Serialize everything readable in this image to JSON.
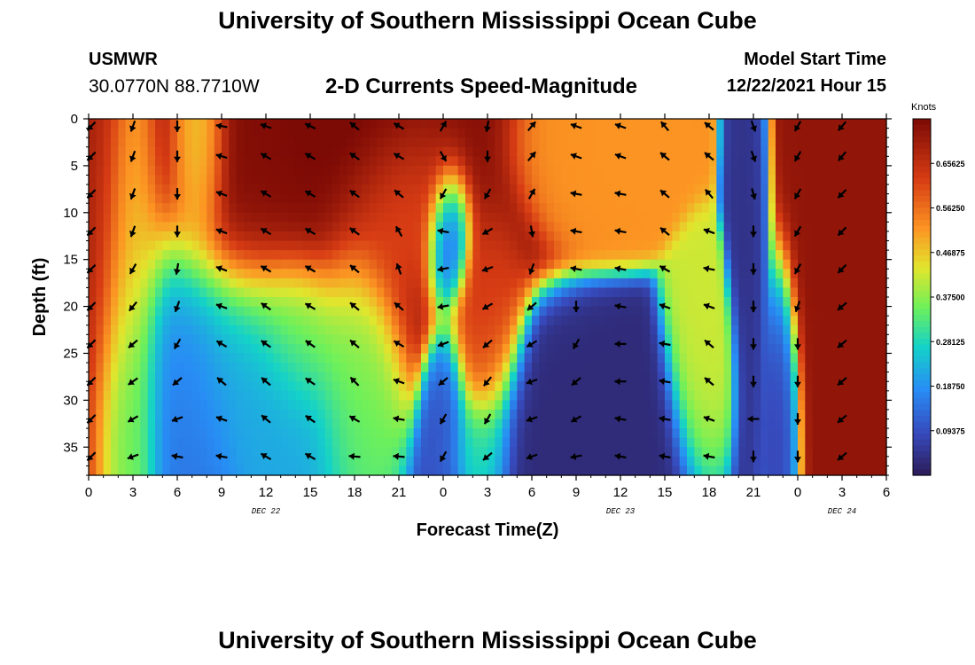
{
  "header": {
    "title": "University of Southern Mississippi Ocean Cube",
    "station": "USMWR",
    "coordinates": "30.0770N  88.7710W",
    "subtitle": "2-D Currents Speed-Magnitude",
    "model_start_label": "Model Start Time",
    "model_start_value": "12/22/2021 Hour 15"
  },
  "footer": {
    "title": "University of Southern Mississippi Ocean Cube"
  },
  "chart_data": {
    "type": "heatmap",
    "title": "2-D Currents Speed-Magnitude",
    "xlabel": "Forecast Time(Z)",
    "ylabel": "Depth (ft)",
    "x_range_hours": [
      0,
      54
    ],
    "y_range_ft": [
      0,
      38
    ],
    "y_ticks": [
      0,
      5,
      10,
      15,
      20,
      25,
      30,
      35
    ],
    "x_tick_labels": [
      "0",
      "3",
      "6",
      "9",
      "12",
      "15",
      "18",
      "21",
      "0",
      "3",
      "6",
      "9",
      "12",
      "15",
      "18",
      "21",
      "0",
      "3",
      "6"
    ],
    "date_labels": [
      {
        "label": "DEC 22",
        "hour": 12
      },
      {
        "label": "DEC 23",
        "hour": 36
      },
      {
        "label": "DEC 24",
        "hour": 51
      }
    ],
    "colorbar": {
      "title": "Knots",
      "ticks": [
        "0.65625",
        "0.56250",
        "0.46875",
        "0.37500",
        "0.28125",
        "0.18750",
        "0.09375"
      ],
      "range": [
        0,
        0.75
      ]
    },
    "speed_field_knots": [
      {
        "hour": 0.5,
        "depth": 10,
        "value": 0.7,
        "sh": 1.1,
        "sd": 16
      },
      {
        "hour": 2.5,
        "depth": 20,
        "value": 0.45,
        "sh": 1.2,
        "sd": 14
      },
      {
        "hour": 2.5,
        "depth": 32,
        "value": 0.3,
        "sh": 1.0,
        "sd": 7
      },
      {
        "hour": 7.5,
        "depth": 3,
        "value": 0.4,
        "sh": 0.9,
        "sd": 6
      },
      {
        "hour": 6.5,
        "depth": 30,
        "value": 0.15,
        "sh": 1.6,
        "sd": 9
      },
      {
        "hour": 15.0,
        "depth": 6,
        "value": 0.74,
        "sh": 5.5,
        "sd": 9
      },
      {
        "hour": 18.0,
        "depth": 2,
        "value": 0.78,
        "sh": 2.5,
        "sd": 5
      },
      {
        "hour": 20.5,
        "depth": 9,
        "value": 0.55,
        "sh": 2.0,
        "sd": 5
      },
      {
        "hour": 14.5,
        "depth": 22,
        "value": 0.36,
        "sh": 1.6,
        "sd": 4
      },
      {
        "hour": 18.0,
        "depth": 23,
        "value": 0.36,
        "sh": 1.3,
        "sd": 6
      },
      {
        "hour": 11.0,
        "depth": 26,
        "value": 0.21,
        "sh": 3.5,
        "sd": 6
      },
      {
        "hour": 24.3,
        "depth": 13,
        "value": 0.04,
        "sh": 0.7,
        "sd": 3.5
      },
      {
        "hour": 24.3,
        "depth": 33,
        "value": 0.1,
        "sh": 0.7,
        "sd": 5
      },
      {
        "hour": 26.8,
        "depth": 24,
        "value": 0.62,
        "sh": 1.1,
        "sd": 6
      },
      {
        "hour": 26.3,
        "depth": 35,
        "value": 0.28,
        "sh": 1.0,
        "sd": 3
      },
      {
        "hour": 34.5,
        "depth": 3,
        "value": 0.52,
        "sh": 2.3,
        "sd": 4
      },
      {
        "hour": 33.0,
        "depth": 33,
        "value": 0.03,
        "sh": 3.5,
        "sd": 5
      },
      {
        "hour": 41.5,
        "depth": 26,
        "value": 0.42,
        "sh": 1.0,
        "sd": 5
      },
      {
        "hour": 44.7,
        "depth": 12,
        "value": 0.04,
        "sh": 0.6,
        "sd": 11
      },
      {
        "hour": 46.8,
        "depth": 31,
        "value": 0.07,
        "sh": 0.6,
        "sd": 7
      },
      {
        "hour": 51.5,
        "depth": 9,
        "value": 0.72,
        "sh": 2.2,
        "sd": 16
      }
    ],
    "arrow_hours": [
      0,
      3,
      6,
      9,
      12,
      15,
      18,
      21,
      24,
      27,
      30,
      33,
      36,
      39,
      42,
      45,
      48,
      51
    ],
    "arrow_depths": [
      0.5,
      4,
      8,
      12,
      16,
      20,
      24,
      28,
      32,
      36
    ],
    "arrow_directions_deg": [
      [
        -135,
        -135,
        -135,
        -135,
        -135,
        -135,
        -135,
        -135,
        -135,
        -135
      ],
      [
        -110,
        -110,
        -110,
        -110,
        -120,
        -130,
        -140,
        -145,
        -150,
        -160
      ],
      [
        -90,
        -90,
        -90,
        -90,
        -100,
        -110,
        -120,
        -140,
        -160,
        170
      ],
      [
        170,
        165,
        160,
        160,
        160,
        160,
        150,
        140,
        160,
        170
      ],
      [
        160,
        150,
        150,
        150,
        150,
        145,
        145,
        140,
        140,
        150
      ],
      [
        155,
        150,
        150,
        150,
        150,
        150,
        145,
        145,
        145,
        150
      ],
      [
        140,
        145,
        145,
        145,
        140,
        140,
        140,
        135,
        150,
        175
      ],
      [
        150,
        150,
        140,
        120,
        110,
        140,
        150,
        160,
        170,
        175
      ],
      [
        60,
        -60,
        -120,
        170,
        -170,
        -170,
        -160,
        -140,
        -120,
        -120
      ],
      [
        -100,
        -90,
        -120,
        -150,
        -160,
        -150,
        -140,
        -130,
        -120,
        -140
      ],
      [
        50,
        50,
        60,
        -80,
        -110,
        -140,
        -150,
        -160,
        -160,
        -160
      ],
      [
        160,
        160,
        170,
        170,
        170,
        -90,
        -120,
        -140,
        -150,
        -170
      ],
      [
        160,
        160,
        170,
        170,
        170,
        170,
        180,
        180,
        170,
        170
      ],
      [
        130,
        140,
        140,
        140,
        150,
        160,
        170,
        170,
        170,
        170
      ],
      [
        140,
        140,
        130,
        160,
        170,
        160,
        140,
        140,
        160,
        170
      ],
      [
        -70,
        -70,
        -75,
        -90,
        -90,
        -90,
        -90,
        -90,
        180,
        -90
      ],
      [
        -120,
        -120,
        -120,
        -120,
        -120,
        -110,
        -90,
        -90,
        -90,
        -90
      ],
      [
        -130,
        -130,
        -135,
        -135,
        -135,
        -140,
        -140,
        -140,
        -140,
        -140
      ]
    ]
  }
}
